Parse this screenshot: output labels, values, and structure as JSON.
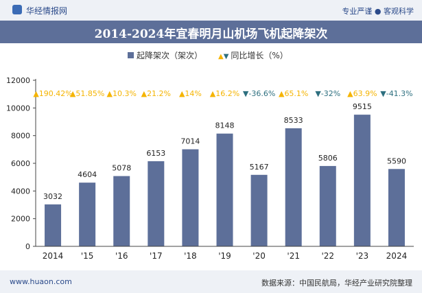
{
  "header": {
    "brand": "华经情报网",
    "tagline": "专业严谨 ● 客观科学"
  },
  "title": "2014-2024年宜春明月山机场飞机起降架次",
  "legend": {
    "bar_label": "起降架次（架次）",
    "growth_label": "同比增长（%）"
  },
  "footer": {
    "site": "www.huaon.com",
    "source": "数据来源：中国民航局，华经产业研究院整理"
  },
  "colors": {
    "bar": "#5d6f99",
    "up": "#f5b400",
    "down": "#2d6f7f"
  },
  "chart_data": {
    "type": "bar",
    "title": "2014-2024年宜春明月山机场飞机起降架次",
    "categories": [
      "2014",
      "'15",
      "'16",
      "'17",
      "'18",
      "'19",
      "'20",
      "'21",
      "'22",
      "'23",
      "2024"
    ],
    "series": [
      {
        "name": "起降架次（架次）",
        "values": [
          3032,
          4604,
          5078,
          6153,
          7014,
          8148,
          5167,
          8533,
          5806,
          9515,
          5590
        ]
      },
      {
        "name": "同比增长（%）",
        "values": [
          190.42,
          51.85,
          10.3,
          21.2,
          14,
          16.2,
          -36.6,
          65.1,
          -32,
          63.9,
          -41.3
        ],
        "labels": [
          "190.42%",
          "51.85%",
          "10.3%",
          "21.2%",
          "14%",
          "16.2%",
          "-36.6%",
          "65.1%",
          "-32%",
          "63.9%",
          "-41.3%"
        ]
      }
    ],
    "ylim": [
      0,
      12000
    ],
    "yticks": [
      0,
      2000,
      4000,
      6000,
      8000,
      10000,
      12000
    ],
    "grid": false,
    "legend_position": "top-center"
  }
}
